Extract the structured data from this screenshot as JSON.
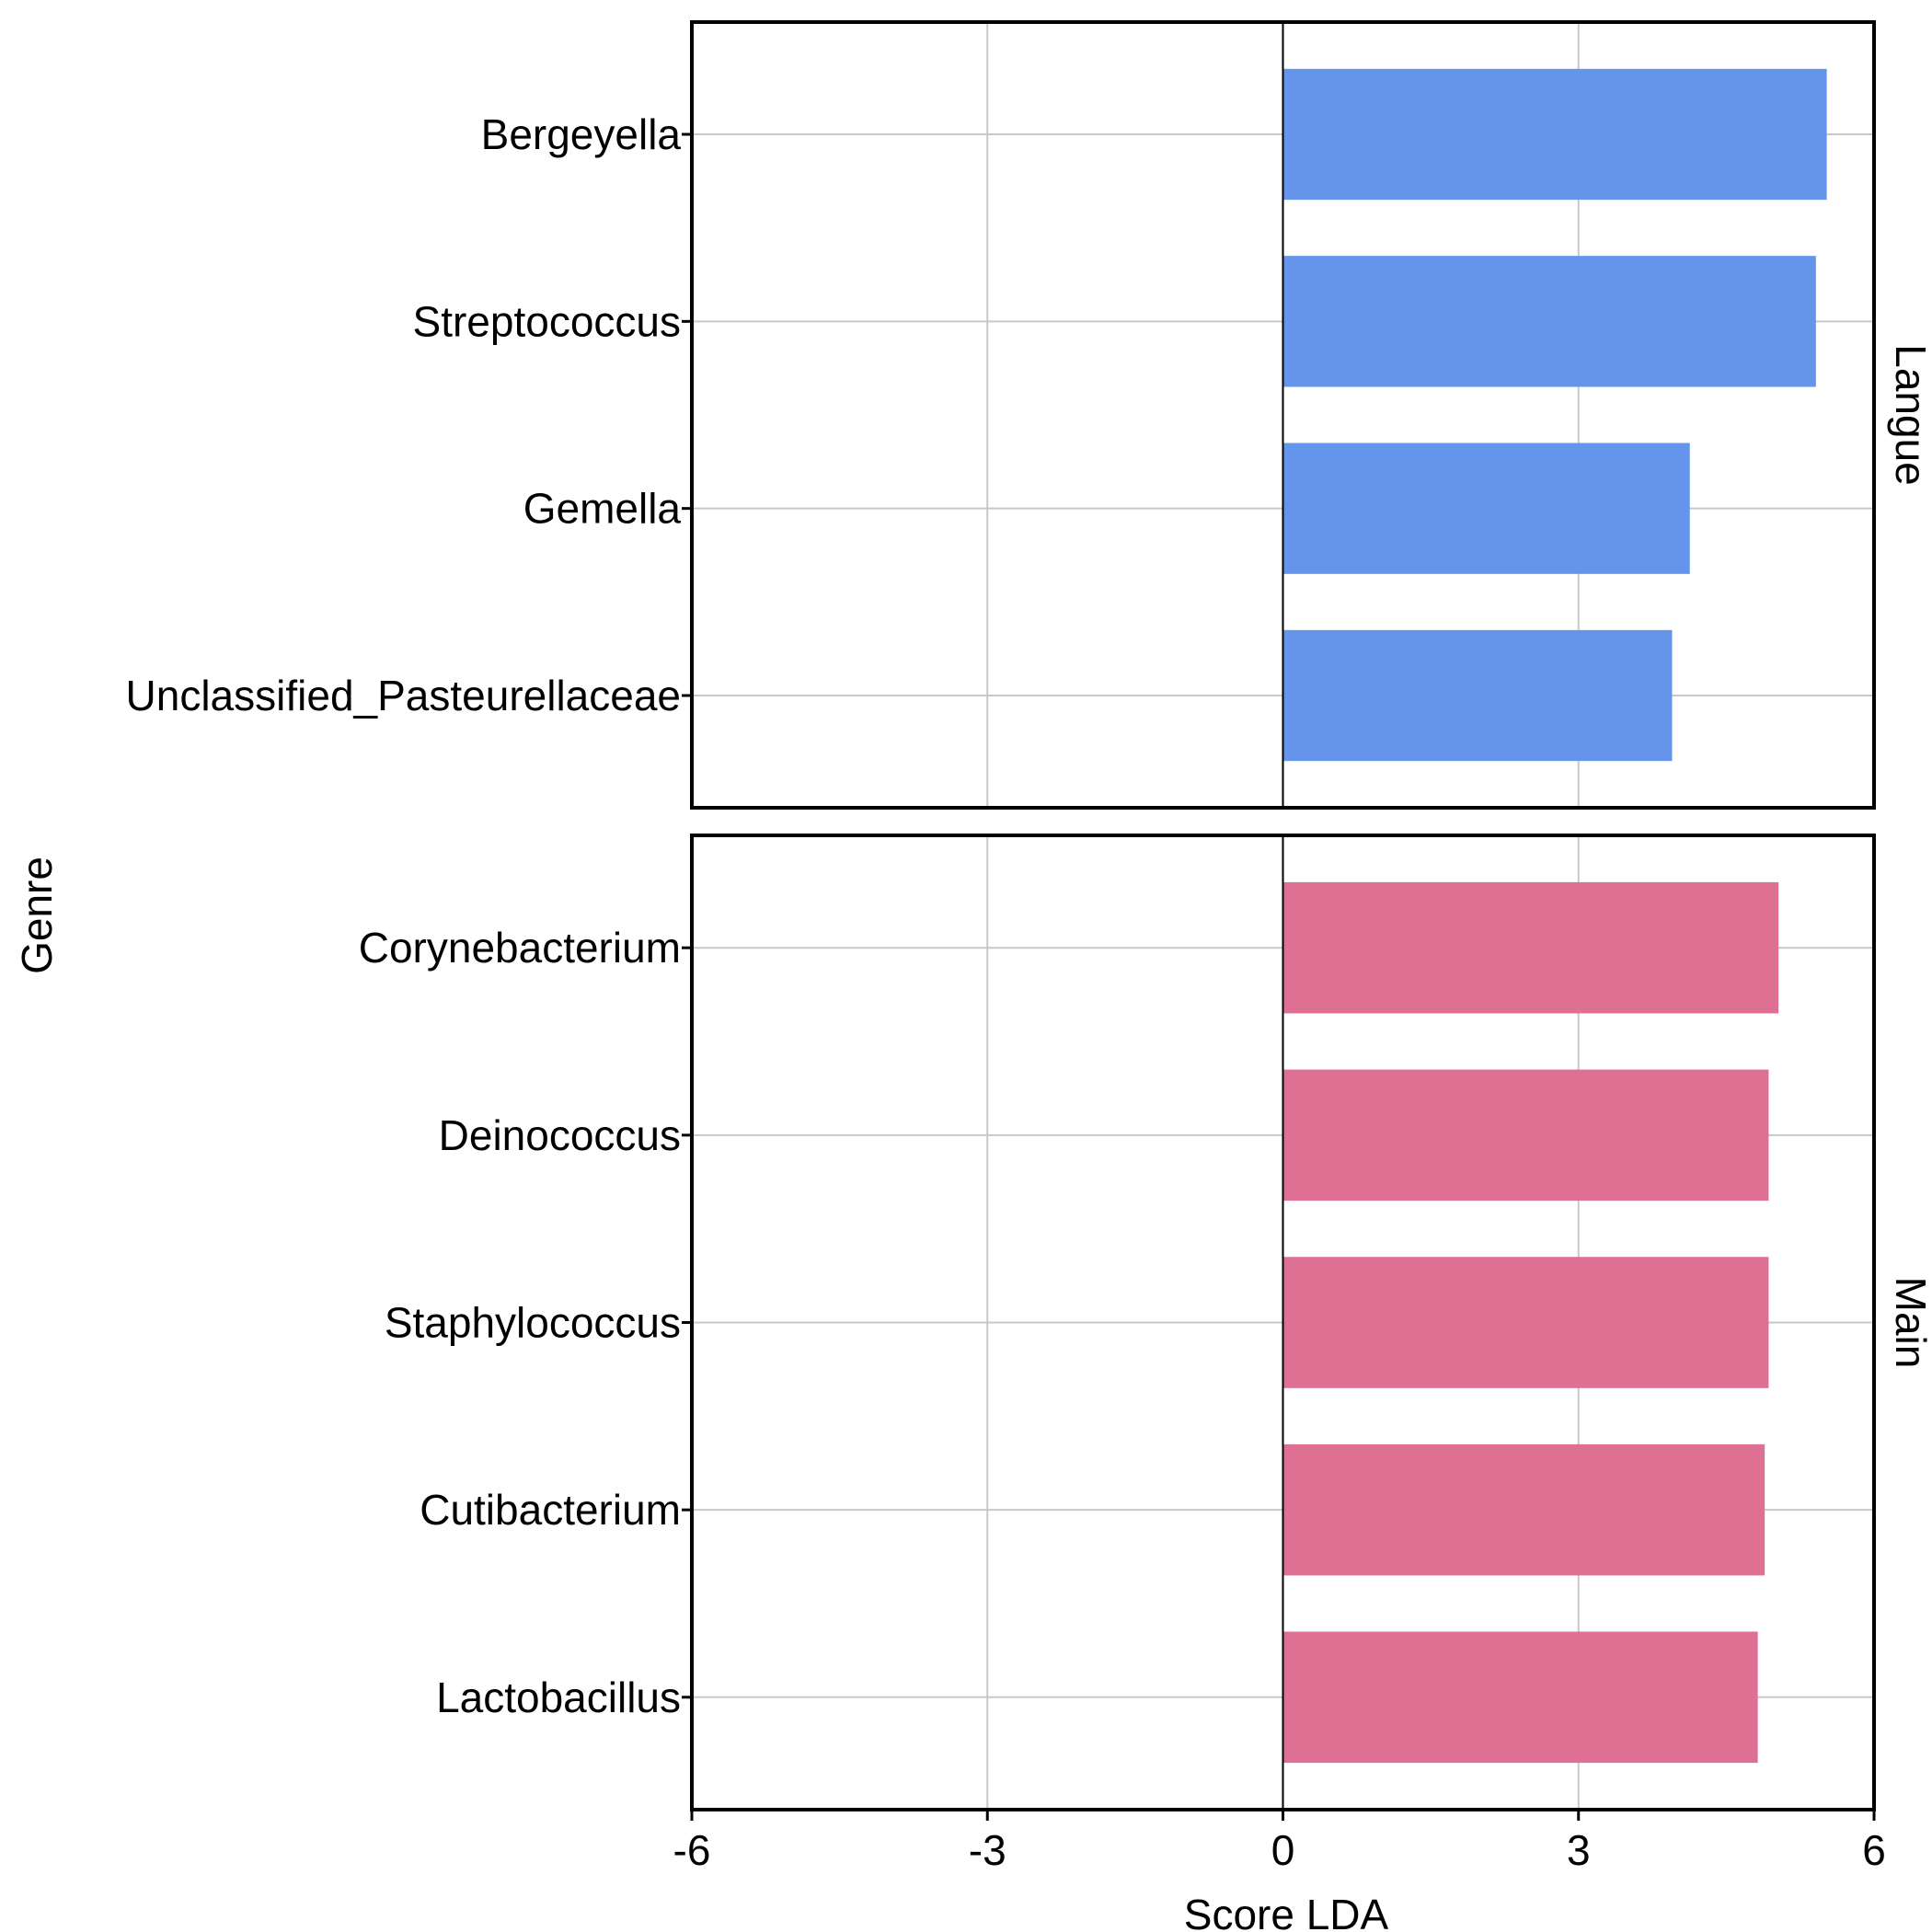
{
  "chart_data": {
    "type": "bar",
    "orientation": "horizontal",
    "xlabel": "Score LDA",
    "ylabel": "Genre",
    "xlim": [
      -6,
      6
    ],
    "xticks": [
      -6,
      -3,
      0,
      3,
      6
    ],
    "grid": true,
    "panels": [
      {
        "label": "Langue",
        "color": "#6495EB",
        "categories": [
          "Bergeyella",
          "Streptococcus",
          "Gemella",
          "Unclassified_Pasteurellaceae"
        ],
        "values": [
          5.52,
          5.41,
          4.13,
          3.95
        ]
      },
      {
        "label": "Main",
        "color": "#DD7093",
        "categories": [
          "Corynebacterium",
          "Deinococcus",
          "Staphylococcus",
          "Cutibacterium",
          "Lactobacillus"
        ],
        "values": [
          5.03,
          4.93,
          4.93,
          4.89,
          4.82
        ]
      }
    ]
  }
}
